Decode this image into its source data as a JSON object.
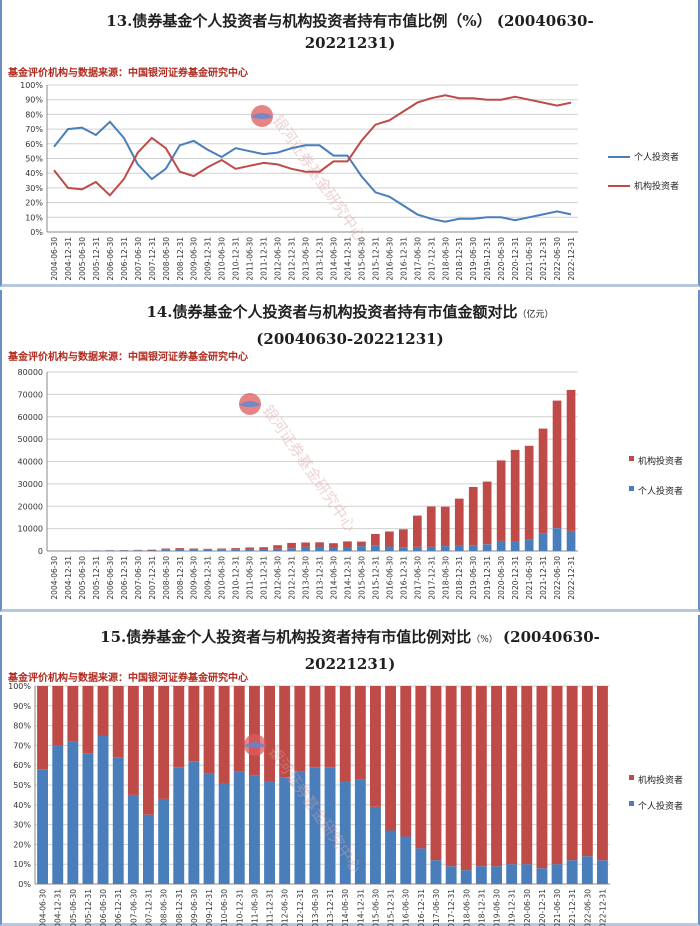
{
  "periods": [
    "2004-06-30",
    "2004-12-31",
    "2005-06-30",
    "2005-12-31",
    "2006-06-30",
    "2006-12-31",
    "2007-06-30",
    "2007-12-31",
    "2008-06-30",
    "2008-12-31",
    "2009-06-30",
    "2009-12-31",
    "2010-06-30",
    "2010-12-31",
    "2011-06-30",
    "2011-12-31",
    "2012-06-30",
    "2012-12-31",
    "2013-06-30",
    "2013-12-31",
    "2014-06-30",
    "2014-12-31",
    "2015-06-30",
    "2015-12-31",
    "2016-06-30",
    "2016-12-31",
    "2017-06-30",
    "2017-12-31",
    "2018-06-30",
    "2018-12-31",
    "2019-06-30",
    "2019-12-31",
    "2020-06-30",
    "2020-12-31",
    "2021-06-30",
    "2021-12-31",
    "2022-06-30",
    "2022-12-31"
  ],
  "source_label": "基金评价机构与数据来源：中国银河证券基金研究中心",
  "watermark_text": "银河证券基金研究中心",
  "colors": {
    "individual": "#4a7ebb",
    "institutional": "#be4b48"
  },
  "chart_data": [
    {
      "type": "line",
      "title": "13.债券基金个人投资者与机构投资者持有市值比例（%）（20040630-20221231）",
      "title_lines": [
        "13.债券基金个人投资者与机构投资者持有市值比例（%）  (20040630-",
        "20221231)"
      ],
      "ylim": [
        0,
        100
      ],
      "yticks": [
        "0%",
        "10%",
        "20%",
        "30%",
        "40%",
        "50%",
        "60%",
        "70%",
        "80%",
        "90%",
        "100%"
      ],
      "legend_position": "right",
      "grid": true,
      "series": [
        {
          "name": "个人投资者",
          "values": [
            58,
            70,
            71,
            66,
            75,
            64,
            46,
            36,
            43,
            59,
            62,
            56,
            51,
            57,
            55,
            53,
            54,
            57,
            59,
            59,
            52,
            52,
            38,
            27,
            24,
            18,
            12,
            9,
            7,
            9,
            9,
            10,
            10,
            8,
            10,
            12,
            14,
            12
          ]
        },
        {
          "name": "机构投资者",
          "values": [
            42,
            30,
            29,
            34,
            25,
            36,
            54,
            64,
            57,
            41,
            38,
            44,
            49,
            43,
            45,
            47,
            46,
            43,
            41,
            41,
            48,
            48,
            62,
            73,
            76,
            82,
            88,
            91,
            93,
            91,
            91,
            90,
            90,
            92,
            90,
            88,
            86,
            88
          ]
        }
      ]
    },
    {
      "type": "bar",
      "stacked": true,
      "title": "14.债券基金个人投资者与机构投资者持有市值金额对比（亿元）（20040630-20221231）",
      "title_main": "14.债券基金个人投资者与机构投资者持有市值金额对比",
      "title_unit": "（亿元）",
      "title_line2": "(20040630-20221231)",
      "ylim": [
        0,
        80000
      ],
      "yticks": [
        "0",
        "10000",
        "20000",
        "30000",
        "40000",
        "50000",
        "60000",
        "70000",
        "80000"
      ],
      "legend_position": "right",
      "grid": true,
      "series": [
        {
          "name": "个人投资者",
          "values": [
            40,
            50,
            80,
            200,
            250,
            250,
            300,
            250,
            500,
            700,
            700,
            600,
            600,
            800,
            850,
            900,
            1000,
            1200,
            1900,
            2000,
            1800,
            1800,
            2200,
            2600,
            2000,
            1700,
            1800,
            1900,
            2200,
            2400,
            2600,
            3000,
            4500,
            4200,
            5000,
            8000,
            10200,
            9000
          ]
        },
        {
          "name": "机构投资者",
          "values": [
            20,
            20,
            20,
            50,
            100,
            150,
            200,
            350,
            600,
            600,
            400,
            400,
            500,
            500,
            700,
            800,
            1600,
            2400,
            1900,
            1900,
            1700,
            2500,
            2000,
            5000,
            6700,
            8000,
            14000,
            18000,
            17600,
            21000,
            26000,
            28000,
            36000,
            41000,
            42000,
            46700,
            57000,
            63000
          ]
        }
      ]
    },
    {
      "type": "bar",
      "stacked": true,
      "title": "15.债券基金个人投资者与机构投资者持有市值比例对比（%）（20040630-20221231）",
      "title_main": "15.债券基金个人投资者与机构投资者持有市值比例对比",
      "title_unit": "（%）",
      "title_tail": "  (20040630-",
      "title_line2": "20221231)",
      "ylim": [
        0,
        100
      ],
      "yticks": [
        "0%",
        "10%",
        "20%",
        "30%",
        "40%",
        "50%",
        "60%",
        "70%",
        "80%",
        "90%",
        "100%"
      ],
      "legend_position": "right",
      "grid": true,
      "series": [
        {
          "name": "个人投资者",
          "values": [
            58,
            70,
            72,
            66,
            75,
            64,
            45,
            35,
            43,
            59,
            62,
            56,
            51,
            57,
            55,
            52,
            54,
            57,
            59,
            59,
            52,
            53,
            39,
            27,
            24,
            18,
            12,
            9,
            7,
            9,
            9,
            10,
            10,
            8,
            10,
            12,
            14,
            12
          ]
        },
        {
          "name": "机构投资者",
          "values": [
            42,
            30,
            28,
            34,
            25,
            36,
            55,
            65,
            57,
            41,
            38,
            44,
            49,
            43,
            45,
            48,
            46,
            43,
            41,
            41,
            48,
            47,
            61,
            73,
            76,
            82,
            88,
            91,
            93,
            91,
            91,
            90,
            90,
            92,
            90,
            88,
            86,
            88
          ]
        }
      ]
    }
  ]
}
